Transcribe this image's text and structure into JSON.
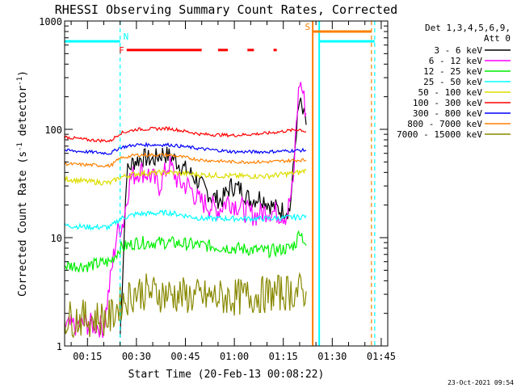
{
  "chart_data": {
    "type": "line",
    "title": "RHESSI Observing Summary Count Rates, Corrected",
    "xlabel": "Start Time (20-Feb-13 00:08:22)",
    "ylabel": "Corrected Count Rate (s⁻¹ detector⁻¹)",
    "ylabel_parts": {
      "text": "Corrected Count Rate (s",
      "sup1": "-1",
      "mid": " detector",
      "sup2": "-1",
      "end": ")"
    },
    "y_scale": "log",
    "xlim": [
      "00:08",
      "01:47"
    ],
    "ylim": [
      1,
      1000
    ],
    "x_ticks": [
      "00:15",
      "00:30",
      "00:45",
      "01:00",
      "01:15",
      "01:30",
      "01:45"
    ],
    "y_ticks": [
      "1",
      "10",
      "100",
      "1000"
    ],
    "legend_position": "top-right",
    "legend_header": [
      "Det 1,3,4,5,6,9,",
      "Att 0"
    ],
    "timestamp": "23-Oct-2021 09:54",
    "colors": {
      "3-6": "#000000",
      "6-12": "#ff00ff",
      "12-25": "#00ee00",
      "25-50": "#00ffff",
      "50-100": "#dddd00",
      "100-300": "#ff0000",
      "300-800": "#0000ff",
      "800-7000": "#ff8000",
      "7000-15000": "#888800"
    },
    "series": [
      {
        "name": "3 - 6 keV",
        "color": "#000000",
        "x": [
          "00:25",
          "00:27",
          "00:29",
          "00:32",
          "00:35",
          "00:38",
          "00:41",
          "00:44",
          "00:47",
          "00:50",
          "00:53",
          "00:56",
          "00:59",
          "01:02",
          "01:05",
          "01:08",
          "01:11",
          "01:14",
          "01:17",
          "01:18",
          "01:19",
          "01:20",
          "01:21",
          "01:22"
        ],
        "values": [
          1.2,
          40,
          50,
          55,
          52,
          60,
          55,
          45,
          38,
          30,
          24,
          22,
          30,
          28,
          22,
          24,
          20,
          18,
          18,
          40,
          100,
          180,
          140,
          110
        ]
      },
      {
        "name": "6 - 12 keV",
        "color": "#ff00ff",
        "x": [
          "00:08",
          "00:15",
          "00:20",
          "00:24",
          "00:26",
          "00:28",
          "00:31",
          "00:34",
          "00:37",
          "00:40",
          "00:43",
          "00:46",
          "00:49",
          "00:52",
          "00:55",
          "00:58",
          "01:01",
          "01:04",
          "01:07",
          "01:10",
          "01:13",
          "01:16",
          "01:18",
          "01:19",
          "01:20",
          "01:21",
          "01:22"
        ],
        "values": [
          1.5,
          1.6,
          1.5,
          11,
          14,
          35,
          42,
          38,
          30,
          48,
          32,
          30,
          22,
          20,
          18,
          22,
          20,
          17,
          16,
          18,
          17,
          16,
          30,
          120,
          280,
          220,
          140
        ]
      },
      {
        "name": "12 - 25 keV",
        "color": "#00ee00",
        "x": [
          "00:08",
          "00:15",
          "00:22",
          "00:25",
          "00:30",
          "00:40",
          "00:50",
          "01:00",
          "01:10",
          "01:17",
          "01:19",
          "01:20",
          "01:21",
          "01:22"
        ],
        "values": [
          5.5,
          5.5,
          6,
          8,
          9,
          9,
          8.5,
          8,
          7.5,
          8,
          9,
          12,
          10,
          8.5
        ]
      },
      {
        "name": "25 - 50 keV",
        "color": "#00ffff",
        "x": [
          "00:08",
          "00:15",
          "00:22",
          "00:25",
          "00:30",
          "00:40",
          "00:50",
          "01:00",
          "01:10",
          "01:20",
          "01:22"
        ],
        "values": [
          13,
          12.5,
          12.5,
          15,
          16.5,
          17,
          15,
          15,
          15,
          15.5,
          16
        ]
      },
      {
        "name": "50 - 100 keV",
        "color": "#dddd00",
        "x": [
          "00:08",
          "00:15",
          "00:22",
          "00:25",
          "00:30",
          "00:40",
          "00:50",
          "01:00",
          "01:10",
          "01:20",
          "01:22"
        ],
        "values": [
          35,
          33,
          32,
          36,
          39,
          40,
          38,
          37,
          37,
          40,
          42
        ]
      },
      {
        "name": "100 - 300 keV",
        "color": "#ff0000",
        "x": [
          "00:08",
          "00:15",
          "00:22",
          "00:25",
          "00:30",
          "00:40",
          "00:50",
          "01:00",
          "01:10",
          "01:20",
          "01:22"
        ],
        "values": [
          85,
          80,
          78,
          92,
          100,
          102,
          90,
          88,
          92,
          100,
          95
        ]
      },
      {
        "name": "300 - 800 keV",
        "color": "#0000ff",
        "x": [
          "00:08",
          "00:15",
          "00:22",
          "00:25",
          "00:30",
          "00:40",
          "00:50",
          "01:00",
          "01:10",
          "01:20",
          "01:22"
        ],
        "values": [
          64,
          62,
          60,
          68,
          72,
          72,
          66,
          62,
          62,
          64,
          64
        ]
      },
      {
        "name": "800 - 7000 keV",
        "color": "#ff8000",
        "x": [
          "00:08",
          "00:15",
          "00:22",
          "00:25",
          "00:30",
          "00:40",
          "00:50",
          "01:00",
          "01:10",
          "01:20",
          "01:22"
        ],
        "values": [
          48,
          47,
          46,
          54,
          58,
          58,
          52,
          50,
          50,
          52,
          52
        ]
      },
      {
        "name": "7000 - 15000 keV",
        "color": "#888800",
        "x": [
          "00:08",
          "00:15",
          "00:22",
          "00:25",
          "00:30",
          "00:40",
          "00:50",
          "01:00",
          "01:10",
          "01:20",
          "01:22"
        ],
        "values": [
          1.8,
          1.8,
          1.8,
          2.5,
          3.2,
          3,
          2.8,
          2.8,
          3,
          3.2,
          3.2
        ]
      }
    ],
    "annotations": [
      {
        "label": "N",
        "color": "#00ffff",
        "segments": [
          [
            "00:08",
            "00:25"
          ],
          [
            "01:26",
            "01:43"
          ]
        ],
        "level": 650,
        "vlines": [
          {
            "x": "00:25",
            "style": "dashed"
          },
          {
            "x": "01:26",
            "style": "solid"
          },
          {
            "x": "01:43",
            "style": "dashed"
          }
        ]
      },
      {
        "label": "S",
        "color": "#ff8000",
        "segments": [
          [
            "01:24",
            "01:42"
          ]
        ],
        "level": 800,
        "vlines": [
          {
            "x": "01:24",
            "style": "solid"
          },
          {
            "x": "01:42",
            "style": "dashed"
          }
        ]
      },
      {
        "label": "F",
        "color": "#ff0000",
        "segments": [
          [
            "00:27",
            "00:50"
          ],
          [
            "00:55",
            "00:58"
          ],
          [
            "01:04",
            "01:06"
          ],
          [
            "01:12",
            "01:13"
          ]
        ],
        "level": 540
      }
    ]
  }
}
